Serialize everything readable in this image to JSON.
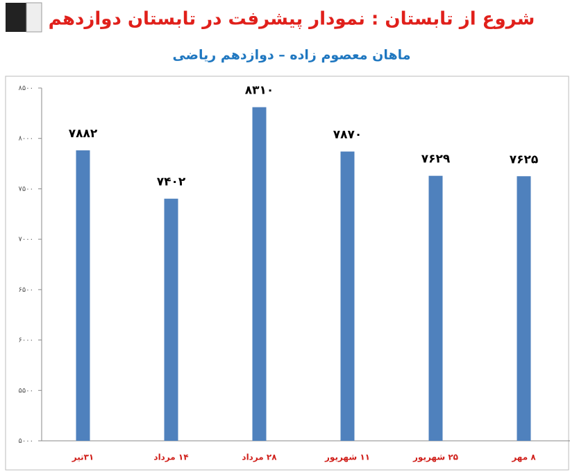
{
  "chart_data": {
    "type": "bar",
    "title": "شروع از تابستان : نمودار پیشرفت در تابستان دوازدهم",
    "subtitle": "ماهان معصوم زاده – دوازدهم ریاضی",
    "categories": [
      "۳۱تیر",
      "۱۴ مرداد",
      "۲۸ مرداد",
      "۱۱ شهریور",
      "۲۵ شهریور",
      "۸ مهر"
    ],
    "values": [
      7882,
      7402,
      8310,
      7870,
      7629,
      7625
    ],
    "value_labels": [
      "۷۸۸۲",
      "۷۴۰۲",
      "۸۳۱۰",
      "۷۸۷۰",
      "۷۶۲۹",
      "۷۶۲۵"
    ],
    "color": "#4f81bd",
    "ylim": [
      5000,
      8500
    ],
    "yticks": [
      {
        "value": 5000,
        "label": "۵۰۰۰"
      },
      {
        "value": 5500,
        "label": "۵۵۰۰"
      },
      {
        "value": 6000,
        "label": "۶۰۰۰"
      },
      {
        "value": 6500,
        "label": "۶۵۰۰"
      },
      {
        "value": 7000,
        "label": "۷۰۰۰"
      },
      {
        "value": 7500,
        "label": "۷۵۰۰"
      },
      {
        "value": 8000,
        "label": "۸۰۰۰"
      },
      {
        "value": 8500,
        "label": "۸۵۰۰"
      }
    ],
    "grid": false
  }
}
